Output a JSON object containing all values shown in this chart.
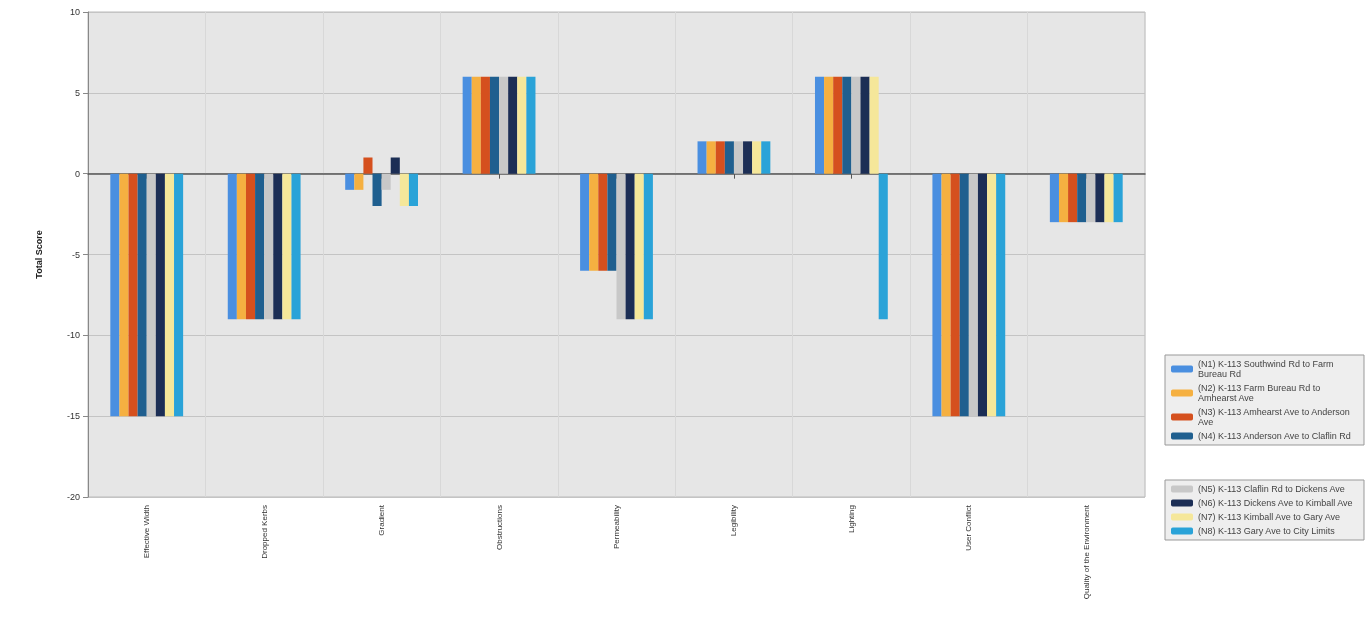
{
  "chart_data": {
    "type": "bar",
    "ylabel": "Total Score",
    "categories": [
      "Effective Width",
      "Dropped Kerbs",
      "Gradient",
      "Obstructions",
      "Permeability",
      "Legibility",
      "Lighting",
      "User Conflict",
      "Quality of the Environment"
    ],
    "series": [
      {
        "name": "(N1) K-113 Southwind Rd to Farm Bureau Rd",
        "color": "#4a8fe0",
        "values": [
          -15,
          -9,
          -1,
          6,
          -6,
          2,
          6,
          -15,
          -3
        ]
      },
      {
        "name": "(N2) K-113 Farm Bureau Rd to Amhearst Ave",
        "color": "#f5b041",
        "values": [
          -15,
          -9,
          -1,
          6,
          -6,
          2,
          6,
          -15,
          -3
        ]
      },
      {
        "name": "(N3) K-113 Amhearst Ave to Anderson Ave",
        "color": "#d5501e",
        "values": [
          -15,
          -9,
          1,
          6,
          -6,
          2,
          6,
          -15,
          -3
        ]
      },
      {
        "name": "(N4) K-113 Anderson Ave to Claflin Rd",
        "color": "#1f5f8f",
        "values": [
          -15,
          -9,
          -2,
          6,
          -6,
          2,
          6,
          -15,
          -3
        ]
      },
      {
        "name": "(N5) K-113 Claflin Rd to Dickens Ave",
        "color": "#c8c8c8",
        "values": [
          -15,
          -9,
          -1,
          6,
          -9,
          2,
          6,
          -15,
          -3
        ]
      },
      {
        "name": "(N6) K-113 Dickens Ave to Kimball Ave",
        "color": "#1c2e55",
        "values": [
          -15,
          -9,
          1,
          6,
          -9,
          2,
          6,
          -15,
          -3
        ]
      },
      {
        "name": "(N7) K-113 Kimball Ave to Gary Ave",
        "color": "#f5e79a",
        "values": [
          -15,
          -9,
          -2,
          6,
          -9,
          2,
          6,
          -15,
          -3
        ]
      },
      {
        "name": "(N8) K-113 Gary Ave to City Limits",
        "color": "#2aa3d8",
        "values": [
          -15,
          -9,
          -2,
          6,
          -9,
          2,
          -9,
          -15,
          -3
        ]
      }
    ],
    "ylim": [
      -20,
      10
    ],
    "yticks": [
      -20,
      -15,
      -10,
      -5,
      0,
      5,
      10
    ],
    "grid": true,
    "legend": "bottom right"
  }
}
